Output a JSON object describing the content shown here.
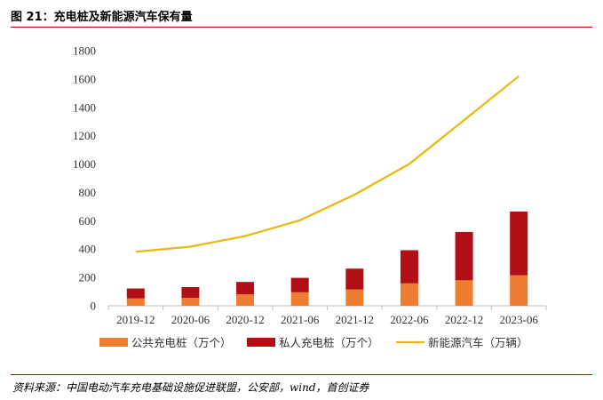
{
  "page": {
    "title": "图 21：充电桩及新能源汽车保有量",
    "source": "资料来源：中国电动汽车充电基础设施促进联盟，公安部，wind，首创证券"
  },
  "colors": {
    "public": "#ed7d31",
    "private": "#b01015",
    "nev": "#e8b90c",
    "rule": "#c00000"
  },
  "chart_data": {
    "type": "bar",
    "title": "",
    "xlabel": "",
    "ylabel": "",
    "ylim": [
      0,
      1800
    ],
    "yticks": [
      0,
      200,
      400,
      600,
      800,
      1000,
      1200,
      1400,
      1600,
      1800
    ],
    "grid": false,
    "legend_position": "bottom",
    "categories": [
      "2019-12",
      "2020-06",
      "2020-12",
      "2021-06",
      "2021-12",
      "2022-06",
      "2022-12",
      "2023-06"
    ],
    "series": [
      {
        "name": "公共充电桩（万个）",
        "type": "bar",
        "stack": "chargers",
        "color": "#ed7d31",
        "values": [
          52,
          56,
          81,
          95,
          115,
          158,
          180,
          215
        ]
      },
      {
        "name": "私人充电桩（万个）",
        "type": "bar",
        "stack": "chargers",
        "color": "#b01015",
        "values": [
          70,
          76,
          87,
          102,
          147,
          234,
          341,
          450
        ]
      },
      {
        "name": "新能源汽车（万辆）",
        "type": "line",
        "color": "#e8b90c",
        "values": [
          381,
          417,
          492,
          603,
          784,
          1001,
          1310,
          1620
        ]
      }
    ]
  }
}
